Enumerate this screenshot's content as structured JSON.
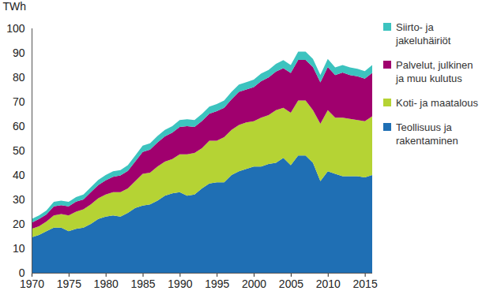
{
  "chart_data": {
    "type": "area",
    "stacked": true,
    "grid": false,
    "legend": "right",
    "y_label": "TWh",
    "x": [
      1970,
      1971,
      1972,
      1973,
      1974,
      1975,
      1976,
      1977,
      1978,
      1979,
      1980,
      1981,
      1982,
      1983,
      1984,
      1985,
      1986,
      1987,
      1988,
      1989,
      1990,
      1991,
      1992,
      1993,
      1994,
      1995,
      1996,
      1997,
      1998,
      1999,
      2000,
      2001,
      2002,
      2003,
      2004,
      2005,
      2006,
      2007,
      2008,
      2009,
      2010,
      2011,
      2012,
      2013,
      2014,
      2015,
      2016
    ],
    "xlim": [
      1970,
      2016
    ],
    "xticks": [
      1970,
      1975,
      1980,
      1985,
      1990,
      1995,
      2000,
      2005,
      2010,
      2015
    ],
    "ylim": [
      0,
      100
    ],
    "yticks": [
      0,
      10,
      20,
      30,
      40,
      50,
      60,
      70,
      80,
      90,
      100
    ],
    "series": [
      {
        "name": "Teollisuus ja rakentaminen",
        "color": "#1f6fb4",
        "values": [
          14.5,
          15.5,
          17,
          18.5,
          18.5,
          17,
          18,
          18.5,
          20,
          22,
          23,
          23.5,
          23,
          24.5,
          26.5,
          27.5,
          28,
          29.5,
          31.5,
          32.5,
          33,
          31.5,
          32,
          34.5,
          36.5,
          37,
          37,
          40,
          41.5,
          42.5,
          43.5,
          43.5,
          44.5,
          45,
          47,
          44,
          48,
          48,
          45,
          37.5,
          41.5,
          40.5,
          39.5,
          39.5,
          39.5,
          39,
          40
        ]
      },
      {
        "name": "Koti- ja maatalous",
        "color": "#b5d334",
        "values": [
          3.5,
          3.5,
          4,
          5,
          5.5,
          6.5,
          7,
          7.5,
          8,
          8.5,
          9,
          9.5,
          10,
          10,
          11,
          13,
          13,
          14,
          14,
          14,
          15.5,
          17,
          17,
          16.5,
          17.5,
          17,
          18.5,
          18.5,
          19,
          19,
          18.5,
          20,
          20,
          21.5,
          20.5,
          21.5,
          22.5,
          22.5,
          21.5,
          23.5,
          25,
          23,
          24,
          23.5,
          23,
          23,
          24
        ]
      },
      {
        "name": "Palvelut, julkinen ja muu kulutus",
        "color": "#a0006e",
        "values": [
          2.5,
          3,
          2.9,
          3.7,
          3.7,
          3.7,
          4.1,
          4,
          5,
          5.4,
          5.8,
          6.3,
          6.8,
          7.2,
          8.1,
          8.9,
          9.4,
          9.8,
          10.3,
          10.8,
          11.2,
          11.5,
          10.7,
          11.1,
          11.1,
          12.1,
          12,
          12.5,
          13.5,
          13.5,
          14,
          14.9,
          15.4,
          15.8,
          16.2,
          16.3,
          16.6,
          16.6,
          17.7,
          16.9,
          17.7,
          17.4,
          18.4,
          17.9,
          17.9,
          17.4,
          17.8
        ]
      },
      {
        "name": "Siirto- ja jakeluhäiriöt",
        "color": "#3cc3bf",
        "values": [
          1.5,
          1.5,
          1.6,
          1.8,
          1.8,
          1.8,
          1.9,
          2,
          2,
          2.1,
          2.2,
          2.2,
          2.2,
          2.3,
          2.4,
          2.6,
          2.6,
          2.7,
          2.7,
          2.7,
          2.8,
          2.8,
          2.8,
          2.9,
          2.9,
          2.9,
          3,
          3,
          3,
          3,
          3,
          3.1,
          3.1,
          3.2,
          3.3,
          3.2,
          3.4,
          3.4,
          3.3,
          3.1,
          3.3,
          3.1,
          3.1,
          3.1,
          3.1,
          3.1,
          3.2
        ]
      }
    ]
  }
}
